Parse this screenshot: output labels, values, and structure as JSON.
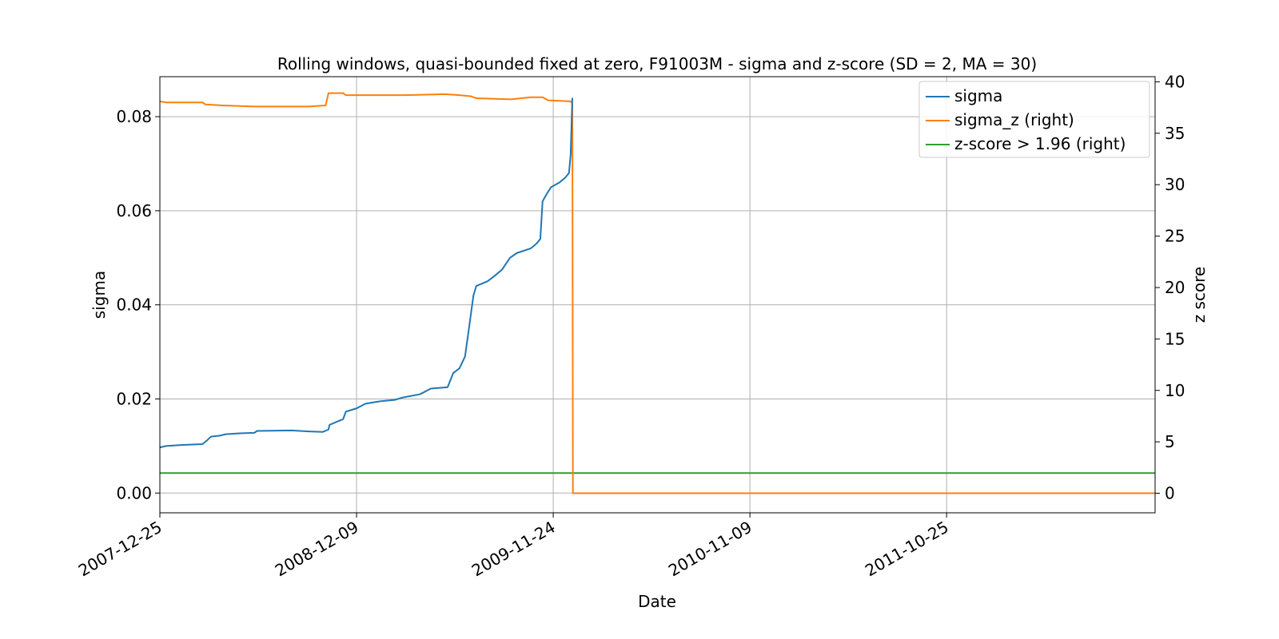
{
  "chart_data": {
    "type": "line",
    "title": "Rolling windows, quasi-bounded fixed at zero, F91003M - sigma and z-score (SD = 2, MA = 30)",
    "xlabel": "Date",
    "ylabel": "sigma",
    "ylabel_right": "z score",
    "xlim": [
      "2007-12-25",
      "2012-10-30"
    ],
    "ylim": [
      -0.0042,
      0.0885
    ],
    "ylim_right": [
      -1.9,
      40.5
    ],
    "x_ticks": [
      "2007-12-25",
      "2008-12-09",
      "2009-11-24",
      "2010-11-09",
      "2011-10-25"
    ],
    "y_ticks": [
      "0.00",
      "0.02",
      "0.04",
      "0.06",
      "0.08"
    ],
    "y_ticks_right": [
      "0",
      "5",
      "10",
      "15",
      "20",
      "25",
      "30",
      "35",
      "40"
    ],
    "grid": true,
    "legend_position": "top-right",
    "colors": {
      "sigma": "#1f77b4",
      "sigma_z": "#ff7f0e",
      "threshold": "#2ca02c",
      "grid": "#b0b0b0"
    },
    "series": [
      {
        "name": "sigma",
        "axis": "left",
        "points": [
          [
            "2007-12-25",
            0.0097
          ],
          [
            "2008-01-05",
            0.01
          ],
          [
            "2008-02-01",
            0.0102
          ],
          [
            "2008-03-10",
            0.0104
          ],
          [
            "2008-03-18",
            0.0112
          ],
          [
            "2008-03-25",
            0.012
          ],
          [
            "2008-04-10",
            0.0122
          ],
          [
            "2008-04-20",
            0.0125
          ],
          [
            "2008-05-15",
            0.0127
          ],
          [
            "2008-06-10",
            0.0128
          ],
          [
            "2008-06-15",
            0.0132
          ],
          [
            "2008-08-15",
            0.0133
          ],
          [
            "2008-09-15",
            0.0131
          ],
          [
            "2008-10-10",
            0.013
          ],
          [
            "2008-10-20",
            0.0135
          ],
          [
            "2008-10-22",
            0.0145
          ],
          [
            "2008-11-05",
            0.0152
          ],
          [
            "2008-11-15",
            0.0157
          ],
          [
            "2008-11-20",
            0.0173
          ],
          [
            "2008-12-09",
            0.018
          ],
          [
            "2008-12-25",
            0.019
          ],
          [
            "2009-01-20",
            0.0195
          ],
          [
            "2009-02-15",
            0.0198
          ],
          [
            "2009-03-01",
            0.0203
          ],
          [
            "2009-04-01",
            0.021
          ],
          [
            "2009-04-20",
            0.0222
          ],
          [
            "2009-05-20",
            0.0225
          ],
          [
            "2009-05-30",
            0.0255
          ],
          [
            "2009-06-10",
            0.0265
          ],
          [
            "2009-06-20",
            0.029
          ],
          [
            "2009-06-27",
            0.035
          ],
          [
            "2009-07-05",
            0.042
          ],
          [
            "2009-07-10",
            0.044
          ],
          [
            "2009-07-30",
            0.045
          ],
          [
            "2009-08-10",
            0.046
          ],
          [
            "2009-08-25",
            0.0475
          ],
          [
            "2009-09-08",
            0.05
          ],
          [
            "2009-09-20",
            0.051
          ],
          [
            "2009-10-15",
            0.052
          ],
          [
            "2009-10-25",
            0.053
          ],
          [
            "2009-11-01",
            0.054
          ],
          [
            "2009-11-05",
            0.062
          ],
          [
            "2009-11-12",
            0.0635
          ],
          [
            "2009-11-20",
            0.065
          ],
          [
            "2009-12-05",
            0.066
          ],
          [
            "2009-12-15",
            0.067
          ],
          [
            "2009-12-22",
            0.068
          ],
          [
            "2009-12-25",
            0.072
          ],
          [
            "2009-12-27",
            0.08
          ],
          [
            "2009-12-28",
            0.084
          ]
        ]
      },
      {
        "name": "sigma_z (right)",
        "axis": "right",
        "points": [
          [
            "2007-12-25",
            38.1
          ],
          [
            "2008-01-05",
            38.0
          ],
          [
            "2008-02-15",
            38.0
          ],
          [
            "2008-03-10",
            38.0
          ],
          [
            "2008-03-15",
            37.8
          ],
          [
            "2008-04-15",
            37.7
          ],
          [
            "2008-06-10",
            37.6
          ],
          [
            "2008-09-15",
            37.6
          ],
          [
            "2008-10-15",
            37.7
          ],
          [
            "2008-10-20",
            38.9
          ],
          [
            "2008-11-15",
            38.9
          ],
          [
            "2008-11-20",
            38.7
          ],
          [
            "2009-03-01",
            38.7
          ],
          [
            "2009-05-15",
            38.8
          ],
          [
            "2009-06-10",
            38.7
          ],
          [
            "2009-06-30",
            38.6
          ],
          [
            "2009-07-10",
            38.4
          ],
          [
            "2009-09-10",
            38.3
          ],
          [
            "2009-10-15",
            38.5
          ],
          [
            "2009-11-05",
            38.5
          ],
          [
            "2009-11-15",
            38.2
          ],
          [
            "2009-12-25",
            38.1
          ],
          [
            "2009-12-28",
            37.9
          ],
          [
            "2009-12-29",
            0.0
          ],
          [
            "2012-10-30",
            0.0
          ]
        ]
      },
      {
        "name": "z-score > 1.96 (right)",
        "axis": "right",
        "points": [
          [
            "2007-12-25",
            1.96
          ],
          [
            "2012-10-30",
            1.96
          ]
        ]
      }
    ]
  }
}
